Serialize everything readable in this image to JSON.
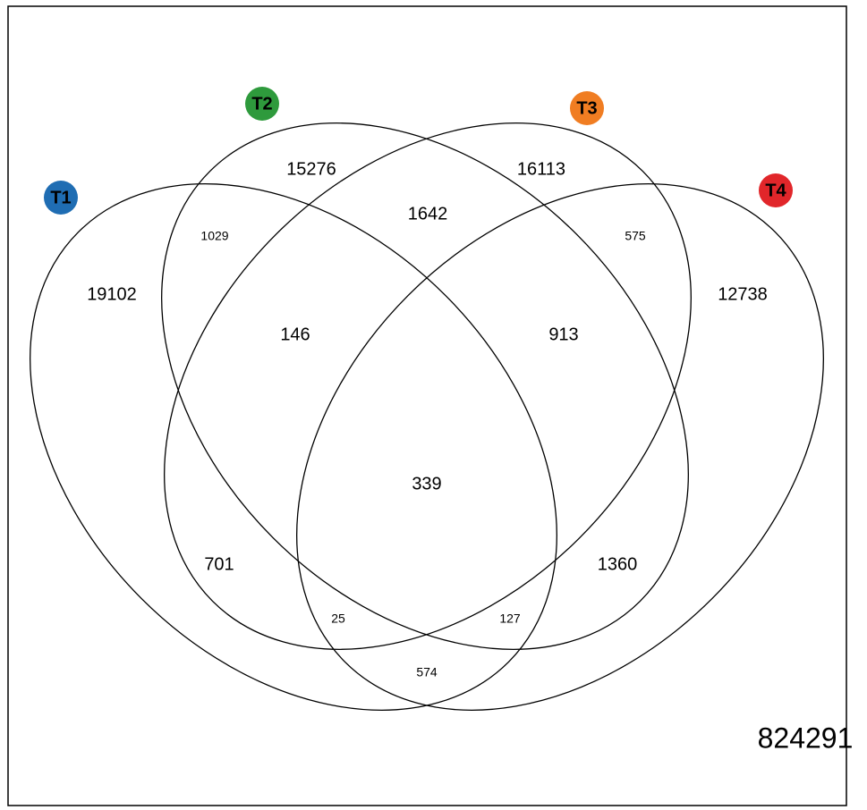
{
  "sets": [
    {
      "label": "T1",
      "color": "#1f6db3"
    },
    {
      "label": "T2",
      "color": "#2e9a3c"
    },
    {
      "label": "T3",
      "color": "#f07d22"
    },
    {
      "label": "T4",
      "color": "#e1262a"
    }
  ],
  "regions": [
    15276,
    16113,
    1642,
    1029,
    575,
    19102,
    12738,
    146,
    913,
    339,
    701,
    1360,
    25,
    127,
    574
  ],
  "outside": 824291
}
